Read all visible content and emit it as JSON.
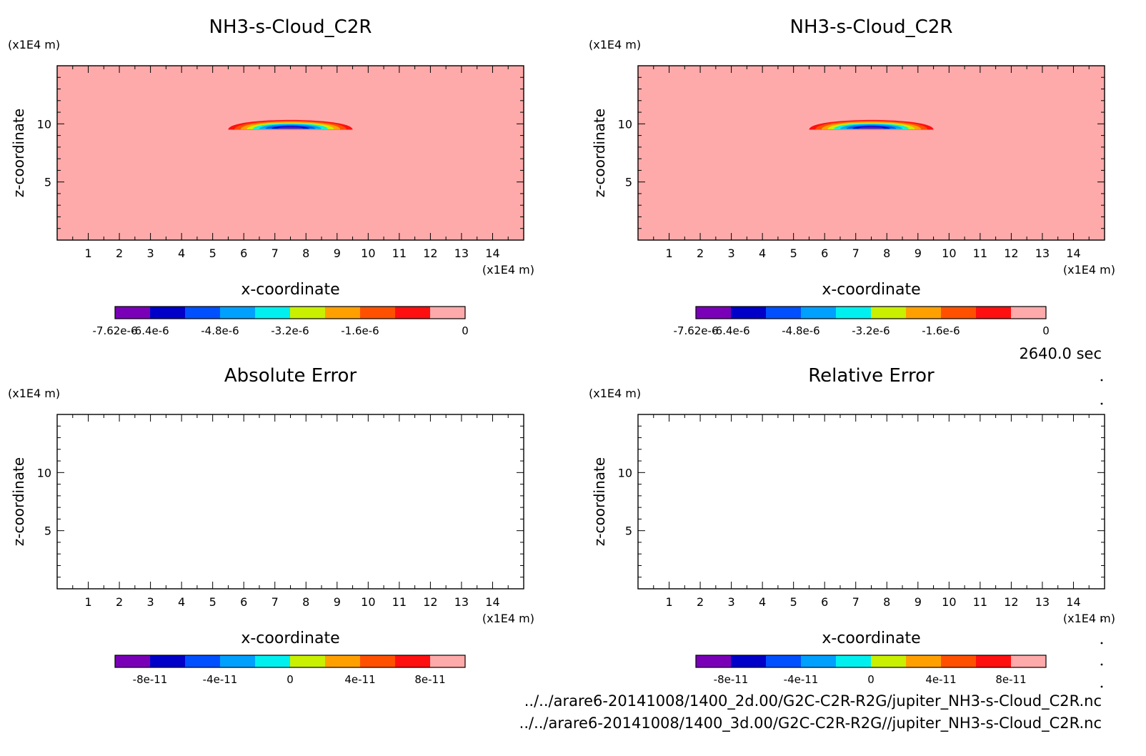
{
  "colors": {
    "main_scale": [
      "#7a00b8",
      "#0000c8",
      "#0050ff",
      "#00a0ff",
      "#00f0f0",
      "#c8f000",
      "#ffa000",
      "#ff5000",
      "#ff1010",
      "#ffaaaa"
    ],
    "error_scale": [
      "#7a00b8",
      "#0000c8",
      "#0050ff",
      "#00a0ff",
      "#00f0f0",
      "#c8f000",
      "#ffa000",
      "#ff5000",
      "#ff1010",
      "#ffaaaa"
    ],
    "background_field": "#ffaaaa"
  },
  "time_label": "2640.0 sec",
  "file_lines": [
    "../../arare6-20141008/1400_2d.00/G2C-C2R-R2G/jupiter_NH3-s-Cloud_C2R.nc",
    "../../arare6-20141008/1400_3d.00/G2C-C2R-R2G//jupiter_NH3-s-Cloud_C2R.nc"
  ],
  "chart_data": [
    {
      "type": "heatmap",
      "title": "NH3-s-Cloud_C2R",
      "xlabel": "x-coordinate",
      "ylabel": "z-coordinate",
      "x_unit": "(x1E4 m)",
      "y_unit": "(x1E4 m)",
      "x_ticks": [
        "1",
        "2",
        "3",
        "4",
        "5",
        "6",
        "7",
        "8",
        "9",
        "10",
        "11",
        "12",
        "13",
        "14"
      ],
      "y_ticks": [
        "5",
        "10"
      ],
      "xlim": [
        0,
        15
      ],
      "ylim": [
        0,
        15
      ],
      "field": "cloud",
      "cloud_x_range": [
        5.5,
        9.5
      ],
      "cloud_z_base": 9.5,
      "colorbar_labels": [
        "-7.62e-6",
        "-6.4e-6",
        "-4.8e-6",
        "-3.2e-6",
        "-1.6e-6",
        "0"
      ],
      "colorbar_label_pos": [
        0,
        1,
        3,
        5,
        7,
        10
      ]
    },
    {
      "type": "heatmap",
      "title": "NH3-s-Cloud_C2R",
      "xlabel": "x-coordinate",
      "ylabel": "z-coordinate",
      "x_unit": "(x1E4 m)",
      "y_unit": "(x1E4 m)",
      "x_ticks": [
        "1",
        "2",
        "3",
        "4",
        "5",
        "6",
        "7",
        "8",
        "9",
        "10",
        "11",
        "12",
        "13",
        "14"
      ],
      "y_ticks": [
        "5",
        "10"
      ],
      "xlim": [
        0,
        15
      ],
      "ylim": [
        0,
        15
      ],
      "field": "cloud",
      "cloud_x_range": [
        5.5,
        9.5
      ],
      "cloud_z_base": 9.5,
      "colorbar_labels": [
        "-7.62e-6",
        "-6.4e-6",
        "-4.8e-6",
        "-3.2e-6",
        "-1.6e-6",
        "0"
      ],
      "colorbar_label_pos": [
        0,
        1,
        3,
        5,
        7,
        10
      ]
    },
    {
      "type": "heatmap",
      "title": "Absolute Error",
      "xlabel": "x-coordinate",
      "ylabel": "z-coordinate",
      "x_unit": "(x1E4 m)",
      "y_unit": "(x1E4 m)",
      "x_ticks": [
        "1",
        "2",
        "3",
        "4",
        "5",
        "6",
        "7",
        "8",
        "9",
        "10",
        "11",
        "12",
        "13",
        "14"
      ],
      "y_ticks": [
        "5",
        "10"
      ],
      "xlim": [
        0,
        15
      ],
      "ylim": [
        0,
        15
      ],
      "field": "empty",
      "colorbar_labels": [
        "-8e-11",
        "-4e-11",
        "0",
        "4e-11",
        "8e-11"
      ],
      "colorbar_label_pos": [
        1,
        3,
        5,
        7,
        9
      ]
    },
    {
      "type": "heatmap",
      "title": "Relative Error",
      "xlabel": "x-coordinate",
      "ylabel": "z-coordinate",
      "x_unit": "(x1E4 m)",
      "y_unit": "(x1E4 m)",
      "x_ticks": [
        "1",
        "2",
        "3",
        "4",
        "5",
        "6",
        "7",
        "8",
        "9",
        "10",
        "11",
        "12",
        "13",
        "14"
      ],
      "y_ticks": [
        "5",
        "10"
      ],
      "xlim": [
        0,
        15
      ],
      "ylim": [
        0,
        15
      ],
      "field": "empty",
      "colorbar_labels": [
        "-8e-11",
        "-4e-11",
        "0",
        "4e-11",
        "8e-11"
      ],
      "colorbar_label_pos": [
        1,
        3,
        5,
        7,
        9
      ]
    }
  ]
}
